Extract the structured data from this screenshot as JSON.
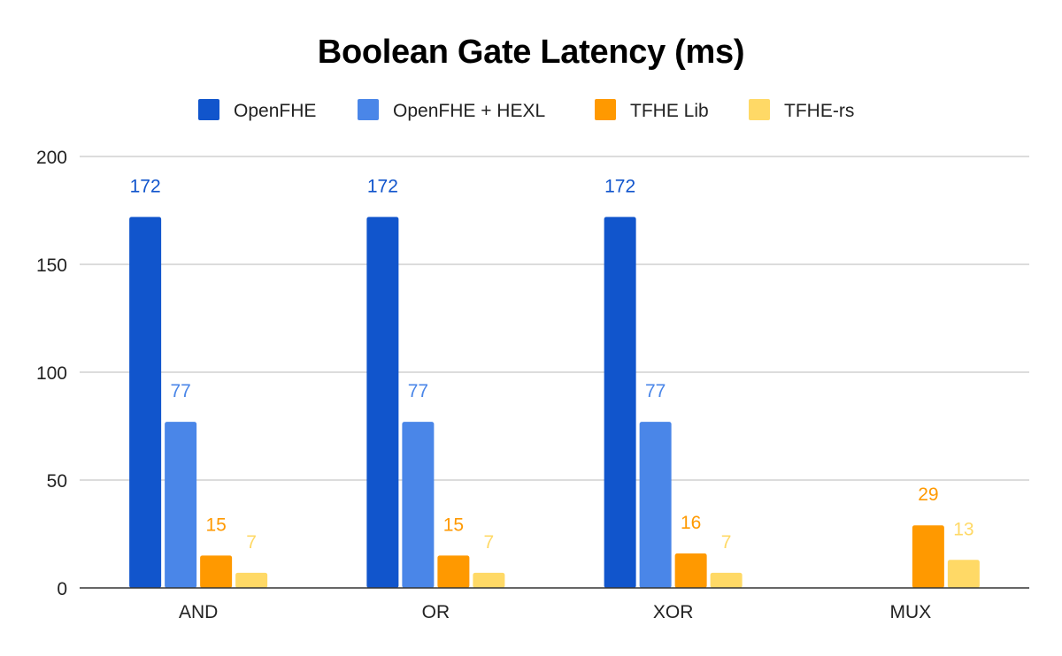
{
  "chart_data": {
    "type": "bar",
    "title": "Boolean Gate Latency (ms)",
    "xlabel": "",
    "ylabel": "",
    "categories": [
      "AND",
      "OR",
      "XOR",
      "MUX"
    ],
    "series": [
      {
        "name": "OpenFHE",
        "color": "#1155cc",
        "values": [
          172,
          172,
          172,
          null
        ],
        "labels": [
          "172",
          "172",
          "172",
          null
        ]
      },
      {
        "name": "OpenFHE + HEXL",
        "color": "#4a86e8",
        "values": [
          77,
          77,
          77,
          null
        ],
        "labels": [
          "77",
          "77",
          "77",
          null
        ]
      },
      {
        "name": "TFHE Lib",
        "color": "#ff9900",
        "values": [
          15,
          15,
          16,
          29
        ],
        "labels": [
          "15",
          "15",
          "16",
          "29"
        ]
      },
      {
        "name": "TFHE-rs",
        "color": "#ffd966",
        "values": [
          7,
          7,
          7,
          13
        ],
        "labels": [
          "7",
          "7",
          "7",
          "13"
        ]
      }
    ],
    "ylim": [
      0,
      200
    ],
    "yticks": [
      0,
      50,
      100,
      150,
      200
    ],
    "ytick_labels": [
      "0",
      "50",
      "100",
      "150",
      "200"
    ],
    "grid": true,
    "legend_position": "top"
  }
}
